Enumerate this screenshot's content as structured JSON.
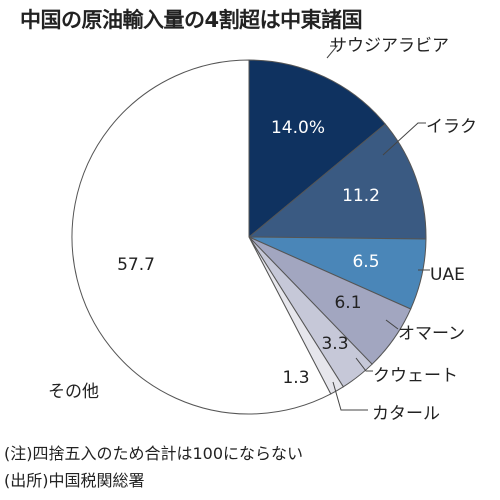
{
  "chart_data": {
    "type": "pie",
    "title": "中国の原油輸入量の4割超は中東諸国",
    "slices": [
      {
        "label": "サウジアラビア",
        "value": 14.0,
        "value_label": "14.0%",
        "color": "#0f3260"
      },
      {
        "label": "イラク",
        "value": 11.2,
        "value_label": "11.2",
        "color": "#3a5a82"
      },
      {
        "label": "UAE",
        "value": 6.5,
        "value_label": "6.5",
        "color": "#4a86b8"
      },
      {
        "label": "オマーン",
        "value": 6.1,
        "value_label": "6.1",
        "color": "#a2a6c0"
      },
      {
        "label": "クウェート",
        "value": 3.3,
        "value_label": "3.3",
        "color": "#c6c8d8"
      },
      {
        "label": "カタール",
        "value": 1.3,
        "value_label": "1.3",
        "color": "#e6e6ec"
      },
      {
        "label": "その他",
        "value": 57.7,
        "value_label": "57.7",
        "color": "#ffffff"
      }
    ],
    "notes": [
      "(注)四捨五入のため合計は100にならない",
      "(出所)中国税関総署"
    ]
  }
}
